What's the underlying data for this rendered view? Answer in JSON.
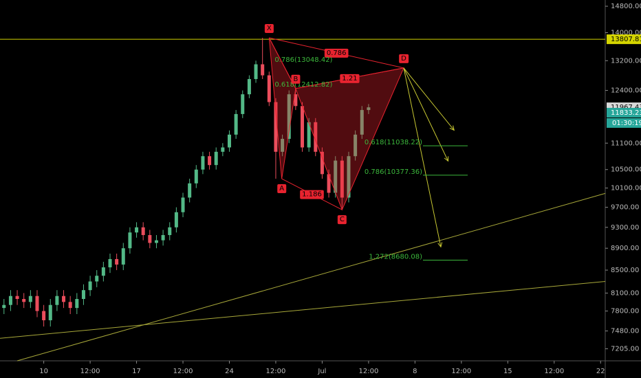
{
  "chart_data": {
    "type": "candlestick",
    "log_scale": true,
    "background": "#000000",
    "up_color": "#53b987",
    "down_color": "#eb4d5c",
    "xlim": [
      -0.6,
      90.7
    ],
    "ylim": [
      7025,
      14995
    ],
    "xticks": [
      {
        "value": 6,
        "label": "10"
      },
      {
        "value": 13,
        "label": "12:00"
      },
      {
        "value": 20,
        "label": "17"
      },
      {
        "value": 27,
        "label": "12:00"
      },
      {
        "value": 34,
        "label": "24"
      },
      {
        "value": 41,
        "label": "12:00"
      },
      {
        "value": 48,
        "label": "Jul"
      },
      {
        "value": 55,
        "label": "12:00"
      },
      {
        "value": 62,
        "label": "8"
      },
      {
        "value": 69,
        "label": "12:00"
      },
      {
        "value": 76,
        "label": "15"
      },
      {
        "value": 83,
        "label": "12:00"
      },
      {
        "value": 90,
        "label": "22"
      }
    ],
    "yticks": [
      {
        "value": 14800,
        "label": "14800.00"
      },
      {
        "value": 14000,
        "label": "14000.00"
      },
      {
        "value": 13200,
        "label": "13200.00"
      },
      {
        "value": 12400,
        "label": "12400.00"
      },
      {
        "value": 11100,
        "label": "11100.00"
      },
      {
        "value": 10500,
        "label": "10500.00"
      },
      {
        "value": 10100,
        "label": "10100.00"
      },
      {
        "value": 9700,
        "label": "9700.00"
      },
      {
        "value": 9300,
        "label": "9300.00"
      },
      {
        "value": 8900,
        "label": "8900.00"
      },
      {
        "value": 8500,
        "label": "8500.00"
      },
      {
        "value": 8100,
        "label": "8100.00"
      },
      {
        "value": 7800,
        "label": "7800.00"
      },
      {
        "value": 7480,
        "label": "7480.00"
      },
      {
        "value": 7205,
        "label": "7205.00"
      }
    ],
    "x": [
      0,
      1,
      2,
      3,
      4,
      5,
      6,
      7,
      8,
      9,
      10,
      11,
      12,
      13,
      14,
      15,
      16,
      17,
      18,
      19,
      20,
      21,
      22,
      23,
      24,
      25,
      26,
      27,
      28,
      29,
      30,
      31,
      32,
      33,
      34,
      35,
      36,
      37,
      38,
      39,
      40,
      41,
      42,
      43,
      44,
      45,
      46,
      47,
      48,
      49,
      50,
      51,
      52,
      53,
      54,
      55
    ],
    "open": [
      7850,
      7900,
      8050,
      8000,
      7950,
      8050,
      7800,
      7650,
      7900,
      8050,
      7950,
      7850,
      8000,
      8150,
      8300,
      8400,
      8550,
      8700,
      8600,
      8900,
      9200,
      9300,
      9150,
      9000,
      9050,
      9150,
      9300,
      9600,
      9900,
      10200,
      10500,
      10800,
      10600,
      10900,
      11000,
      11300,
      11800,
      12300,
      12700,
      13100,
      12800,
      12100,
      10900,
      11200,
      12300,
      12000,
      11000,
      11600,
      10900,
      10400,
      10000,
      10700,
      9900,
      10800,
      11300,
      11900
    ],
    "high": [
      8000,
      8150,
      8150,
      8100,
      8150,
      8150,
      7900,
      8000,
      8150,
      8150,
      8050,
      8100,
      8250,
      8400,
      8500,
      8650,
      8800,
      8800,
      9000,
      9300,
      9400,
      9400,
      9250,
      9150,
      9250,
      9400,
      9700,
      10000,
      10300,
      10600,
      10900,
      10900,
      11000,
      11100,
      11400,
      11900,
      12400,
      12800,
      13200,
      13850,
      12900,
      12200,
      11300,
      12400,
      12450,
      12100,
      11700,
      11700,
      11000,
      10500,
      10800,
      10800,
      10900,
      11400,
      12000,
      12050
    ],
    "low": [
      7750,
      7800,
      7900,
      7850,
      7850,
      7700,
      7550,
      7550,
      7800,
      7850,
      7750,
      7750,
      7900,
      8050,
      8200,
      8300,
      8450,
      8500,
      8500,
      8800,
      9100,
      9050,
      8900,
      8900,
      8950,
      9050,
      9200,
      9500,
      9800,
      10100,
      10400,
      10500,
      10500,
      10800,
      10900,
      11200,
      11700,
      12200,
      12600,
      12700,
      12000,
      10300,
      10800,
      11100,
      11900,
      10900,
      10900,
      10800,
      10300,
      9900,
      9900,
      9650,
      9800,
      10700,
      11200,
      11800
    ],
    "close": [
      7900,
      8050,
      8000,
      7950,
      8050,
      7800,
      7650,
      7900,
      8050,
      7950,
      7850,
      8000,
      8150,
      8300,
      8400,
      8550,
      8700,
      8600,
      8900,
      9200,
      9300,
      9150,
      9000,
      9050,
      9150,
      9300,
      9600,
      9900,
      10200,
      10500,
      10800,
      10600,
      10900,
      11000,
      11300,
      11800,
      12300,
      12700,
      13100,
      12800,
      12100,
      10900,
      11200,
      12300,
      12000,
      11000,
      11600,
      10900,
      10400,
      10000,
      10700,
      9900,
      10800,
      11300,
      11900,
      11967
    ],
    "pattern": {
      "color": "#e8232f",
      "points": [
        {
          "label": "X",
          "x": 40,
          "y": 13850
        },
        {
          "label": "A",
          "x": 41.9,
          "y": 10300
        },
        {
          "label": "B",
          "x": 44,
          "y": 12450
        },
        {
          "label": "C",
          "x": 51,
          "y": 9650
        },
        {
          "label": "D",
          "x": 60.3,
          "y": 13000
        }
      ],
      "ratio_xd": "0.786",
      "ratio_bd": "1.21",
      "ratio_ac": "1.186",
      "retracement_1": "0.786(13048.42)",
      "retracement_2": "0.618(12412.82)"
    },
    "targets": [
      {
        "x": 67.9,
        "y": 11405
      },
      {
        "x": 67.0,
        "y": 10689
      },
      {
        "x": 65.9,
        "y": 8925
      }
    ],
    "fib_levels": [
      {
        "value": 11038.22,
        "label": "0.618(11038.22)"
      },
      {
        "value": 10377.36,
        "label": "0.786(10377.36)"
      },
      {
        "value": 8680.08,
        "label": "1.272(8680.08)"
      }
    ],
    "hline": {
      "value": 13807.81,
      "color": "#d4d400"
    },
    "trendlines": [
      {
        "x": [
          2.0,
          90.7
        ],
        "y": [
          7025,
          9987
        ]
      },
      {
        "x": [
          -0.6,
          90.7
        ],
        "y": [
          7365,
          8300
        ]
      }
    ],
    "price_labels": [
      {
        "value": 11967.43,
        "color": "#d9d9d9"
      },
      {
        "value": 11833.23,
        "color": "#26a69a"
      }
    ],
    "countdown": "01:30:19"
  }
}
